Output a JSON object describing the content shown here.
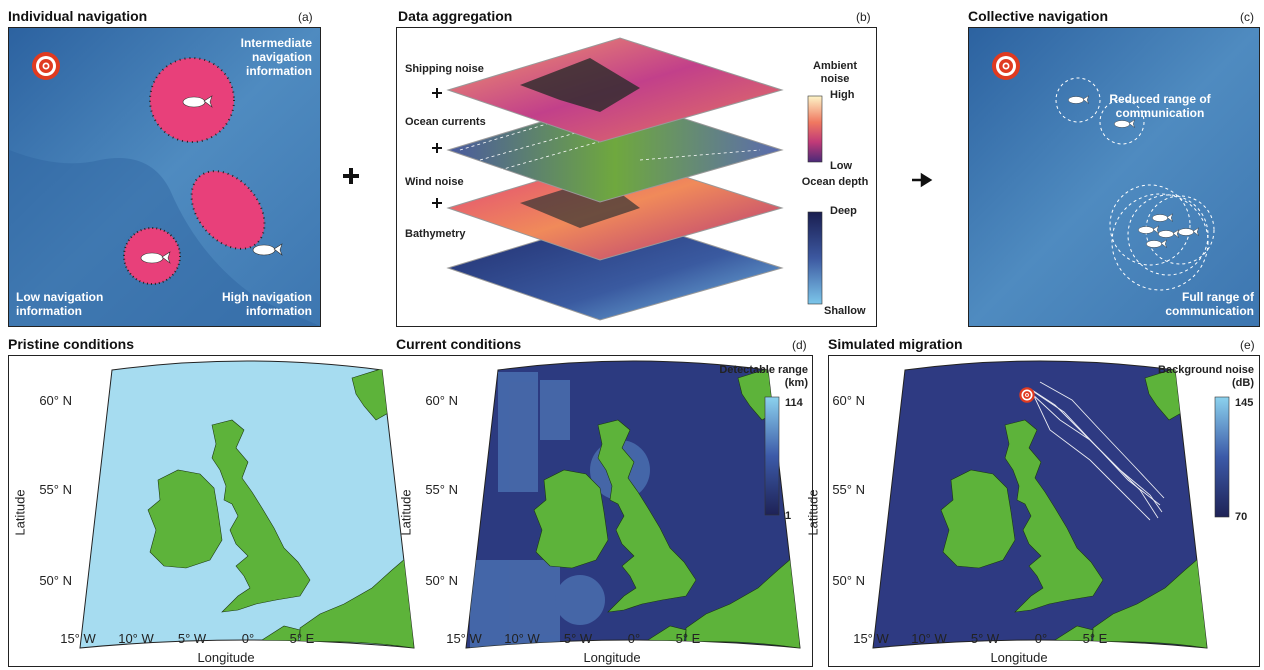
{
  "panels": {
    "a": {
      "title": "Individual navigation",
      "letter": "(a)",
      "labels": [
        "Intermediate navigation information",
        "Low navigation information",
        "High navigation information"
      ]
    },
    "b": {
      "title": "Data aggregation",
      "letter": "(b)",
      "layers": [
        "Shipping noise",
        "Ocean currents",
        "Wind noise",
        "Bathymetry"
      ],
      "colorbar1": {
        "title": "Ambient noise",
        "high": "High",
        "low": "Low"
      },
      "colorbar2": {
        "title": "Ocean depth",
        "high": "Deep",
        "low": "Shallow"
      }
    },
    "c": {
      "title": "Collective navigation",
      "letter": "(c)",
      "labels": [
        "Reduced range of communication",
        "Full range of communication"
      ]
    },
    "d": {
      "titles": [
        "Pristine conditions",
        "Current conditions"
      ],
      "letter": "(d)",
      "colorbar": {
        "title": "Detectable range (km)",
        "ticks": [
          114,
          1
        ]
      }
    },
    "e": {
      "title": "Simulated migration",
      "letter": "(e)",
      "colorbar": {
        "title": "Background noise (dB)",
        "ticks": [
          145,
          70
        ]
      }
    },
    "axes": {
      "xlabel": "Longitude",
      "ylabel": "Latitude",
      "xticks": [
        "15° W",
        "10° W",
        "5° W",
        "0°",
        "5° E"
      ],
      "yticks": [
        "60° N",
        "55° N",
        "50° N"
      ]
    }
  }
}
